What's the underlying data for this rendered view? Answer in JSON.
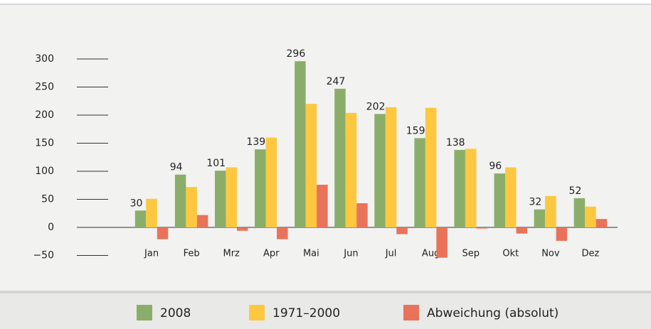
{
  "chart_data": {
    "type": "bar",
    "categories": [
      "Jan",
      "Feb",
      "Mrz",
      "Apr",
      "Mai",
      "Jun",
      "Jul",
      "Aug",
      "Sep",
      "Okt",
      "Nov",
      "Dez"
    ],
    "series": [
      {
        "name": "2008",
        "color": "#8aae6a",
        "values": [
          30,
          94,
          101,
          139,
          296,
          247,
          202,
          159,
          138,
          96,
          32,
          52
        ]
      },
      {
        "name": "1971–2000",
        "color": "#fdc840",
        "values": [
          51,
          72,
          107,
          160,
          220,
          204,
          214,
          213,
          140,
          107,
          56,
          37
        ]
      },
      {
        "name": "Abweichung (absolut)",
        "color": "#e8735a",
        "values": [
          -21,
          22,
          -6,
          -21,
          76,
          43,
          -12,
          -54,
          -2,
          -11,
          -24,
          15
        ]
      }
    ],
    "data_labels_series": 0,
    "ylim": [
      -65,
      320
    ],
    "yticks": [
      {
        "value": -50,
        "label": "−50"
      },
      0,
      50,
      100,
      150,
      200,
      250,
      300
    ]
  }
}
